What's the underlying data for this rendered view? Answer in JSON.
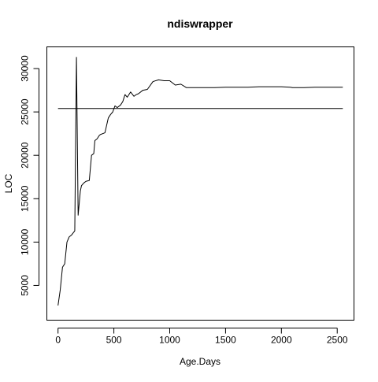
{
  "chart_data": {
    "type": "line",
    "title": "ndiswrapper",
    "xlabel": "Age.Days",
    "ylabel": "LOC",
    "xlim": [
      -100,
      2650
    ],
    "ylim": [
      1000,
      32500
    ],
    "grid": false,
    "xticks": [
      0,
      500,
      1000,
      1500,
      2000,
      2500
    ],
    "yticks": [
      5000,
      10000,
      15000,
      20000,
      25000,
      30000
    ],
    "xtick_labels": [
      "0",
      "500",
      "1000",
      "1500",
      "2000",
      "2500"
    ],
    "ytick_labels": [
      "5000",
      "10000",
      "15000",
      "20000",
      "25000",
      "30000"
    ],
    "reference_line": {
      "y": 25400,
      "x_start": 0,
      "x_end": 2550
    },
    "series": [
      {
        "x": [
          0,
          20,
          40,
          60,
          80,
          100,
          120,
          150,
          165,
          180,
          200,
          210,
          230,
          250,
          280,
          300,
          320,
          330,
          350,
          370,
          380,
          400,
          420,
          450,
          470,
          490,
          510,
          530,
          560,
          580,
          600,
          620,
          650,
          680,
          700,
          720,
          760,
          800,
          850,
          900,
          950,
          1000,
          1050,
          1100,
          1150,
          1200,
          1300,
          1400,
          1500,
          1600,
          1700,
          1800,
          1900,
          2000,
          2080,
          2100,
          2200,
          2300,
          2400,
          2500,
          2550
        ],
        "values": [
          2700,
          4500,
          7100,
          7500,
          10000,
          10600,
          10800,
          11300,
          31300,
          13100,
          15900,
          16500,
          16800,
          17000,
          17100,
          20000,
          20200,
          21700,
          21900,
          22300,
          22400,
          22500,
          22600,
          24300,
          24700,
          25000,
          25700,
          25500,
          25800,
          26200,
          27000,
          26700,
          27300,
          26800,
          27000,
          27100,
          27500,
          27600,
          28500,
          28700,
          28600,
          28600,
          28100,
          28200,
          27800,
          27800,
          27800,
          27800,
          27850,
          27850,
          27850,
          27900,
          27900,
          27900,
          27850,
          27800,
          27800,
          27850,
          27850,
          27850,
          27850
        ]
      }
    ]
  }
}
